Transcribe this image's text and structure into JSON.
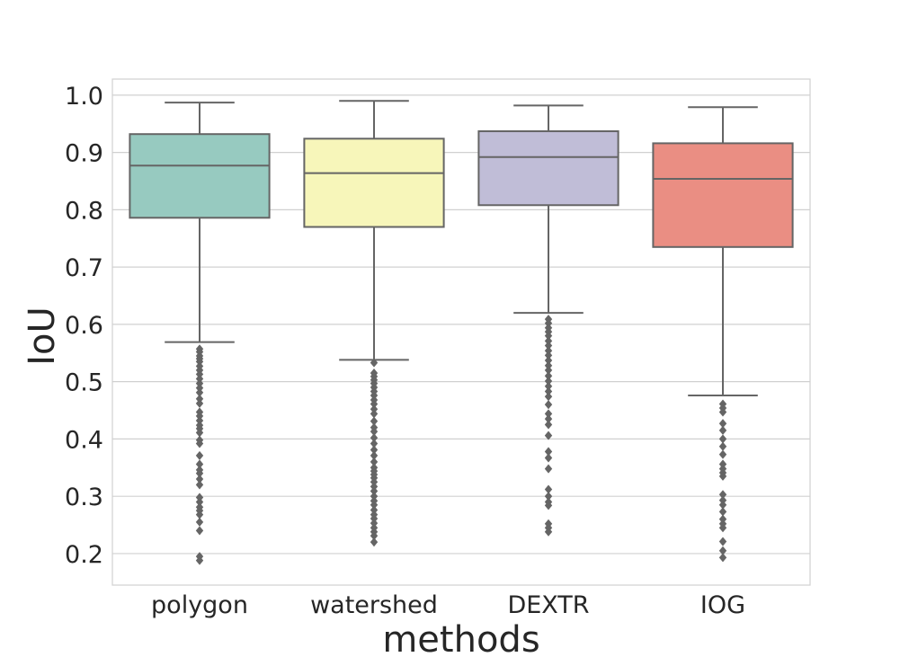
{
  "chart_data": {
    "type": "box",
    "xlabel": "methods",
    "ylabel": "IoU",
    "ylim": [
      0.145,
      1.028
    ],
    "yticks": [
      0.2,
      0.3,
      0.4,
      0.5,
      0.6,
      0.7,
      0.8,
      0.9,
      1.0
    ],
    "ytick_labels": [
      "0.2",
      "0.3",
      "0.4",
      "0.5",
      "0.6",
      "0.7",
      "0.8",
      "0.9",
      "1.0"
    ],
    "grid": true,
    "categories": [
      "polygon",
      "watershed",
      "DEXTR",
      "IOG"
    ],
    "boxes": [
      {
        "name": "polygon",
        "color": "#97cac0",
        "whisker_low": 0.569,
        "q1": 0.786,
        "median": 0.877,
        "q3": 0.932,
        "whisker_high": 0.987,
        "outliers": [
          0.557,
          0.552,
          0.545,
          0.54,
          0.535,
          0.527,
          0.52,
          0.513,
          0.505,
          0.497,
          0.489,
          0.481,
          0.47,
          0.462,
          0.447,
          0.44,
          0.432,
          0.424,
          0.418,
          0.411,
          0.398,
          0.392,
          0.371,
          0.356,
          0.346,
          0.34,
          0.33,
          0.32,
          0.298,
          0.29,
          0.281,
          0.275,
          0.268,
          0.255,
          0.24,
          0.195,
          0.188
        ]
      },
      {
        "name": "watershed",
        "color": "#f7f6ba",
        "whisker_low": 0.538,
        "q1": 0.77,
        "median": 0.864,
        "q3": 0.924,
        "whisker_high": 0.99,
        "outliers": [
          0.533,
          0.515,
          0.509,
          0.503,
          0.497,
          0.49,
          0.483,
          0.476,
          0.468,
          0.461,
          0.452,
          0.444,
          0.431,
          0.42,
          0.413,
          0.402,
          0.392,
          0.381,
          0.371,
          0.36,
          0.35,
          0.344,
          0.338,
          0.332,
          0.325,
          0.317,
          0.309,
          0.3,
          0.292,
          0.285,
          0.276,
          0.268,
          0.261,
          0.253,
          0.245,
          0.238,
          0.231,
          0.22
        ]
      },
      {
        "name": "DEXTR",
        "color": "#c0bdd7",
        "whisker_low": 0.62,
        "q1": 0.808,
        "median": 0.892,
        "q3": 0.937,
        "whisker_high": 0.982,
        "outliers": [
          0.609,
          0.602,
          0.594,
          0.587,
          0.58,
          0.571,
          0.563,
          0.554,
          0.546,
          0.537,
          0.528,
          0.52,
          0.51,
          0.501,
          0.492,
          0.483,
          0.474,
          0.46,
          0.444,
          0.435,
          0.425,
          0.406,
          0.378,
          0.367,
          0.348,
          0.312,
          0.3,
          0.29,
          0.284,
          0.252,
          0.245,
          0.238
        ]
      },
      {
        "name": "IOG",
        "color": "#ea8e83",
        "whisker_low": 0.476,
        "q1": 0.735,
        "median": 0.854,
        "q3": 0.916,
        "whisker_high": 0.979,
        "outliers": [
          0.461,
          0.454,
          0.447,
          0.427,
          0.415,
          0.4,
          0.387,
          0.373,
          0.356,
          0.348,
          0.341,
          0.335,
          0.303,
          0.293,
          0.285,
          0.273,
          0.26,
          0.252,
          0.245,
          0.221,
          0.205,
          0.193
        ]
      }
    ]
  }
}
